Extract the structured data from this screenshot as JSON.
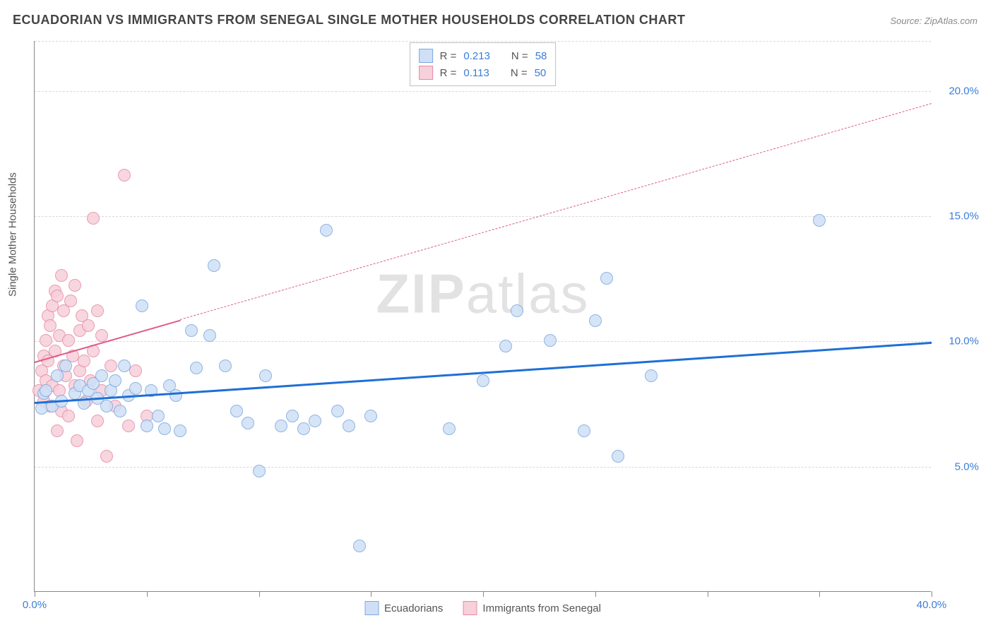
{
  "title": "ECUADORIAN VS IMMIGRANTS FROM SENEGAL SINGLE MOTHER HOUSEHOLDS CORRELATION CHART",
  "source": "Source: ZipAtlas.com",
  "ylabel": "Single Mother Households",
  "watermark_a": "ZIP",
  "watermark_b": "atlas",
  "chart": {
    "type": "scatter",
    "xlim": [
      0,
      40
    ],
    "ylim": [
      0,
      22
    ],
    "background_color": "#ffffff",
    "grid_color": "#d8d8d8",
    "axis_color": "#888888",
    "marker_radius": 9,
    "marker_stroke_width": 1.2,
    "x_ticks": [
      0,
      5,
      10,
      15,
      20,
      25,
      30,
      35,
      40
    ],
    "x_tick_labels": {
      "0": "0.0%",
      "40": "40.0%"
    },
    "y_gridlines": [
      5,
      10,
      15,
      20
    ],
    "y_tick_labels": {
      "5": "5.0%",
      "10": "10.0%",
      "15": "15.0%",
      "20": "20.0%"
    },
    "label_color": "#3b7dd8",
    "label_fontsize": 15,
    "title_color": "#444444",
    "title_fontsize": 18
  },
  "series": {
    "ecuadorians": {
      "label": "Ecuadorians",
      "fill": "#cfe0f6",
      "stroke": "#7aa8e0",
      "trend_color": "#1f6fd6",
      "trend_width": 3,
      "trend_dash": "none",
      "R": "0.213",
      "N": "58",
      "trend": {
        "x1": 0,
        "y1": 7.6,
        "x2": 40,
        "y2": 10.0
      },
      "points": [
        [
          0.3,
          7.3
        ],
        [
          0.4,
          7.9
        ],
        [
          0.5,
          8.0
        ],
        [
          0.8,
          7.4
        ],
        [
          1.0,
          8.6
        ],
        [
          1.2,
          7.6
        ],
        [
          1.4,
          9.0
        ],
        [
          1.8,
          7.9
        ],
        [
          2.0,
          8.2
        ],
        [
          2.2,
          7.5
        ],
        [
          2.4,
          8.0
        ],
        [
          2.6,
          8.3
        ],
        [
          2.8,
          7.7
        ],
        [
          3.0,
          8.6
        ],
        [
          3.2,
          7.4
        ],
        [
          3.4,
          8.0
        ],
        [
          3.6,
          8.4
        ],
        [
          3.8,
          7.2
        ],
        [
          4.0,
          9.0
        ],
        [
          4.2,
          7.8
        ],
        [
          4.5,
          8.1
        ],
        [
          4.8,
          11.4
        ],
        [
          5.0,
          6.6
        ],
        [
          5.2,
          8.0
        ],
        [
          5.5,
          7.0
        ],
        [
          5.8,
          6.5
        ],
        [
          6.0,
          8.2
        ],
        [
          6.3,
          7.8
        ],
        [
          6.5,
          6.4
        ],
        [
          7.0,
          10.4
        ],
        [
          7.2,
          8.9
        ],
        [
          7.8,
          10.2
        ],
        [
          8.0,
          13.0
        ],
        [
          8.5,
          9.0
        ],
        [
          9.0,
          7.2
        ],
        [
          9.5,
          6.7
        ],
        [
          10.0,
          4.8
        ],
        [
          10.3,
          8.6
        ],
        [
          11.0,
          6.6
        ],
        [
          11.5,
          7.0
        ],
        [
          12.0,
          6.5
        ],
        [
          12.5,
          6.8
        ],
        [
          13.0,
          14.4
        ],
        [
          13.5,
          7.2
        ],
        [
          14.0,
          6.6
        ],
        [
          14.5,
          1.8
        ],
        [
          15.0,
          7.0
        ],
        [
          18.5,
          6.5
        ],
        [
          20.0,
          8.4
        ],
        [
          21.0,
          9.8
        ],
        [
          21.5,
          11.2
        ],
        [
          23.0,
          10.0
        ],
        [
          24.5,
          6.4
        ],
        [
          25.5,
          12.5
        ],
        [
          25.0,
          10.8
        ],
        [
          26.0,
          5.4
        ],
        [
          27.5,
          8.6
        ],
        [
          35.0,
          14.8
        ]
      ]
    },
    "senegal": {
      "label": "Immigrants from Senegal",
      "fill": "#f6d0da",
      "stroke": "#e78aa4",
      "trend_color": "#e05a8a",
      "trend_width": 2,
      "trend_dash": "6 6",
      "R": "0.113",
      "N": "50",
      "trend": {
        "x1": 0,
        "y1": 9.2,
        "x2": 40,
        "y2": 19.5
      },
      "trend_solid_until_x": 6.5,
      "points": [
        [
          0.2,
          8.0
        ],
        [
          0.3,
          8.8
        ],
        [
          0.4,
          9.4
        ],
        [
          0.4,
          7.6
        ],
        [
          0.5,
          10.0
        ],
        [
          0.5,
          8.4
        ],
        [
          0.6,
          11.0
        ],
        [
          0.6,
          9.2
        ],
        [
          0.7,
          7.4
        ],
        [
          0.7,
          10.6
        ],
        [
          0.8,
          11.4
        ],
        [
          0.8,
          8.2
        ],
        [
          0.9,
          12.0
        ],
        [
          0.9,
          9.6
        ],
        [
          1.0,
          6.4
        ],
        [
          1.0,
          11.8
        ],
        [
          1.1,
          8.0
        ],
        [
          1.1,
          10.2
        ],
        [
          1.2,
          12.6
        ],
        [
          1.2,
          7.2
        ],
        [
          1.3,
          9.0
        ],
        [
          1.3,
          11.2
        ],
        [
          1.4,
          8.6
        ],
        [
          1.5,
          10.0
        ],
        [
          1.5,
          7.0
        ],
        [
          1.6,
          11.6
        ],
        [
          1.7,
          9.4
        ],
        [
          1.8,
          8.2
        ],
        [
          1.8,
          12.2
        ],
        [
          1.9,
          6.0
        ],
        [
          2.0,
          10.4
        ],
        [
          2.0,
          8.8
        ],
        [
          2.1,
          11.0
        ],
        [
          2.2,
          9.2
        ],
        [
          2.3,
          7.6
        ],
        [
          2.4,
          10.6
        ],
        [
          2.5,
          8.4
        ],
        [
          2.6,
          14.9
        ],
        [
          2.6,
          9.6
        ],
        [
          2.8,
          6.8
        ],
        [
          2.8,
          11.2
        ],
        [
          3.0,
          8.0
        ],
        [
          3.0,
          10.2
        ],
        [
          3.2,
          5.4
        ],
        [
          3.4,
          9.0
        ],
        [
          3.6,
          7.4
        ],
        [
          4.0,
          16.6
        ],
        [
          4.2,
          6.6
        ],
        [
          4.5,
          8.8
        ],
        [
          5.0,
          7.0
        ]
      ]
    }
  },
  "legend_top_labels": {
    "R": "R =",
    "N": "N ="
  }
}
